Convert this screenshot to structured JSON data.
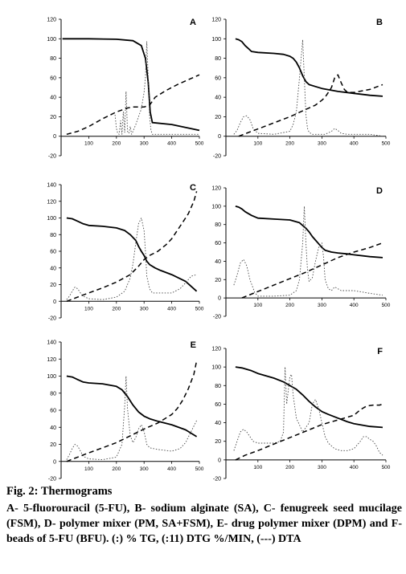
{
  "chart_data": [
    {
      "type": "line",
      "panel_label": "A",
      "x_ticks": [
        "100",
        "200",
        "300",
        "400",
        "500"
      ],
      "y_ticks": [
        "-20",
        "0",
        "20",
        "40",
        "60",
        "80",
        "100",
        "120"
      ],
      "xlim": [
        0,
        500
      ],
      "ylim": [
        -20,
        120
      ],
      "series": [
        {
          "style": "solid",
          "x": [
            5,
            100,
            200,
            260,
            290,
            305,
            315,
            322,
            330,
            400,
            450,
            500
          ],
          "y": [
            100,
            100,
            99.5,
            98,
            93,
            80,
            55,
            25,
            14,
            12,
            9,
            6
          ]
        },
        {
          "style": "dotted",
          "x": [
            195,
            200,
            205,
            210,
            215,
            220,
            225,
            230,
            235,
            240,
            245,
            250,
            255,
            260,
            270,
            280,
            290,
            300,
            305,
            310,
            315,
            320,
            325,
            330,
            340,
            360,
            400,
            450,
            500
          ],
          "y": [
            22,
            8,
            3,
            2,
            16,
            2,
            25,
            4,
            46,
            5,
            3,
            10,
            2,
            5,
            12,
            20,
            28,
            45,
            60,
            97,
            60,
            20,
            6,
            2,
            2,
            2,
            2,
            2,
            2
          ]
        },
        {
          "style": "dashed",
          "x": [
            20,
            60,
            100,
            150,
            200,
            240,
            260,
            280,
            300,
            320,
            340,
            380,
            420,
            460,
            500
          ],
          "y": [
            2,
            5,
            10,
            18,
            25,
            29,
            30,
            30,
            30,
            32,
            40,
            47,
            53,
            58,
            63
          ]
        }
      ]
    },
    {
      "type": "line",
      "panel_label": "B",
      "x_ticks": [
        "100",
        "200",
        "300",
        "400",
        "500"
      ],
      "y_ticks": [
        "-20",
        "0",
        "20",
        "40",
        "60",
        "80",
        "100",
        "120"
      ],
      "xlim": [
        0,
        500
      ],
      "ylim": [
        -20,
        120
      ],
      "series": [
        {
          "style": "solid",
          "x": [
            30,
            40,
            50,
            60,
            70,
            80,
            100,
            150,
            180,
            200,
            210,
            220,
            230,
            240,
            250,
            260,
            280,
            300,
            350,
            400,
            450,
            490
          ],
          "y": [
            100,
            99,
            97,
            93,
            90,
            87,
            86,
            85,
            84,
            82,
            80,
            76,
            70,
            62,
            56,
            53,
            51,
            49,
            46,
            44,
            42,
            41
          ]
        },
        {
          "style": "dotted",
          "x": [
            25,
            35,
            45,
            55,
            65,
            75,
            85,
            100,
            150,
            200,
            210,
            220,
            230,
            240,
            245,
            250,
            255,
            260,
            270,
            290,
            310,
            330,
            340,
            350,
            360,
            380,
            400,
            450,
            490
          ],
          "y": [
            2,
            6,
            14,
            20,
            21,
            17,
            8,
            3,
            2,
            5,
            12,
            25,
            60,
            99,
            60,
            22,
            8,
            4,
            2,
            2,
            2,
            5,
            8,
            6,
            3,
            2,
            2,
            2,
            0
          ]
        },
        {
          "style": "dashed",
          "x": [
            40,
            80,
            120,
            160,
            200,
            240,
            280,
            300,
            310,
            320,
            330,
            340,
            350,
            360,
            370,
            380,
            400,
            450,
            490
          ],
          "y": [
            0,
            5,
            10,
            15,
            20,
            26,
            32,
            37,
            40,
            45,
            50,
            60,
            63,
            55,
            48,
            45,
            45,
            48,
            53
          ]
        }
      ]
    },
    {
      "type": "line",
      "panel_label": "C",
      "x_ticks": [
        "100",
        "200",
        "300",
        "400",
        "500"
      ],
      "y_ticks": [
        "-20",
        "0",
        "20",
        "40",
        "60",
        "80",
        "100",
        "120",
        "140"
      ],
      "xlim": [
        0,
        500
      ],
      "ylim": [
        -20,
        140
      ],
      "series": [
        {
          "style": "solid",
          "x": [
            20,
            40,
            60,
            80,
            100,
            150,
            200,
            230,
            250,
            270,
            280,
            290,
            300,
            310,
            320,
            340,
            360,
            400,
            450,
            490
          ],
          "y": [
            100,
            99,
            96,
            93,
            91,
            90,
            88,
            85,
            80,
            73,
            66,
            60,
            55,
            48,
            44,
            40,
            37,
            32,
            24,
            12
          ]
        },
        {
          "style": "dotted",
          "x": [
            20,
            30,
            40,
            50,
            60,
            70,
            80,
            100,
            150,
            200,
            230,
            250,
            260,
            270,
            280,
            290,
            300,
            305,
            310,
            320,
            330,
            340,
            360,
            400,
            430,
            450,
            470,
            490
          ],
          "y": [
            2,
            6,
            12,
            17,
            15,
            10,
            6,
            3,
            2,
            5,
            12,
            28,
            45,
            70,
            93,
            100,
            85,
            60,
            30,
            15,
            10,
            10,
            10,
            10,
            15,
            22,
            30,
            32
          ]
        },
        {
          "style": "dashed",
          "x": [
            20,
            60,
            100,
            150,
            200,
            250,
            280,
            300,
            320,
            350,
            380,
            400,
            420,
            440,
            460,
            480,
            490
          ],
          "y": [
            0,
            5,
            10,
            16,
            23,
            32,
            42,
            50,
            55,
            60,
            68,
            75,
            85,
            95,
            105,
            120,
            132
          ]
        }
      ]
    },
    {
      "type": "line",
      "panel_label": "D",
      "x_ticks": [
        "100",
        "200",
        "300",
        "400",
        "500"
      ],
      "y_ticks": [
        "-20",
        "0",
        "20",
        "40",
        "60",
        "80",
        "100",
        "120"
      ],
      "xlim": [
        0,
        500
      ],
      "ylim": [
        -20,
        120
      ],
      "series": [
        {
          "style": "solid",
          "x": [
            30,
            40,
            50,
            60,
            80,
            100,
            150,
            200,
            230,
            250,
            260,
            270,
            280,
            290,
            300,
            310,
            330,
            350,
            380,
            400,
            450,
            490
          ],
          "y": [
            100,
            99,
            97,
            94,
            90,
            87,
            86,
            85,
            82,
            76,
            72,
            67,
            63,
            59,
            55,
            52,
            50,
            49,
            48,
            47,
            45,
            44
          ]
        },
        {
          "style": "dotted",
          "x": [
            25,
            35,
            45,
            55,
            65,
            75,
            90,
            100,
            150,
            200,
            220,
            230,
            240,
            245,
            250,
            255,
            260,
            270,
            280,
            290,
            300,
            305,
            310,
            320,
            330,
            340,
            360,
            400,
            450,
            490
          ],
          "y": [
            14,
            25,
            38,
            42,
            35,
            20,
            6,
            2,
            2,
            3,
            8,
            20,
            60,
            100,
            60,
            30,
            18,
            22,
            40,
            55,
            60,
            45,
            20,
            10,
            8,
            12,
            8,
            8,
            5,
            3
          ]
        },
        {
          "style": "dashed",
          "x": [
            50,
            100,
            150,
            200,
            250,
            300,
            350,
            400,
            450,
            490
          ],
          "y": [
            0,
            7,
            14,
            21,
            28,
            36,
            44,
            50,
            55,
            60
          ]
        }
      ]
    },
    {
      "type": "line",
      "panel_label": "E",
      "x_ticks": [
        "100",
        "200",
        "300",
        "400",
        "500"
      ],
      "y_ticks": [
        "-20",
        "0",
        "20",
        "40",
        "60",
        "80",
        "100",
        "120",
        "140"
      ],
      "xlim": [
        0,
        500
      ],
      "ylim": [
        -20,
        140
      ],
      "series": [
        {
          "style": "solid",
          "x": [
            20,
            40,
            60,
            80,
            100,
            150,
            200,
            220,
            240,
            260,
            280,
            300,
            320,
            350,
            400,
            450,
            490
          ],
          "y": [
            100,
            99,
            96,
            93,
            92,
            91,
            88,
            84,
            76,
            66,
            58,
            53,
            50,
            47,
            43,
            37,
            29
          ]
        },
        {
          "style": "dotted",
          "x": [
            20,
            30,
            40,
            50,
            60,
            70,
            80,
            100,
            150,
            200,
            220,
            230,
            235,
            240,
            250,
            260,
            270,
            280,
            290,
            300,
            310,
            320,
            350,
            400,
            430,
            450,
            470,
            490
          ],
          "y": [
            2,
            8,
            15,
            20,
            18,
            12,
            6,
            3,
            2,
            5,
            20,
            65,
            100,
            62,
            30,
            22,
            28,
            38,
            43,
            35,
            20,
            16,
            14,
            12,
            15,
            22,
            35,
            48
          ]
        },
        {
          "style": "dashed",
          "x": [
            20,
            60,
            100,
            150,
            200,
            250,
            300,
            350,
            400,
            420,
            440,
            460,
            480,
            490
          ],
          "y": [
            0,
            5,
            10,
            16,
            22,
            30,
            38,
            45,
            55,
            62,
            72,
            85,
            102,
            118
          ]
        }
      ]
    },
    {
      "type": "line",
      "panel_label": "F",
      "x_ticks": [
        "100",
        "200",
        "300",
        "400",
        "500"
      ],
      "y_ticks": [
        "-20",
        "0",
        "20",
        "40",
        "60",
        "80",
        "100",
        "120"
      ],
      "xlim": [
        0,
        500
      ],
      "ylim": [
        -20,
        120
      ],
      "series": [
        {
          "style": "solid",
          "x": [
            30,
            50,
            80,
            100,
            150,
            180,
            200,
            220,
            240,
            260,
            280,
            300,
            320,
            350,
            380,
            400,
            450,
            490
          ],
          "y": [
            100,
            99,
            96,
            93,
            88,
            84,
            80,
            76,
            70,
            63,
            57,
            52,
            49,
            45,
            41,
            39,
            36,
            35
          ]
        },
        {
          "style": "dotted",
          "x": [
            25,
            35,
            45,
            55,
            65,
            75,
            85,
            100,
            150,
            170,
            180,
            185,
            190,
            195,
            200,
            205,
            210,
            220,
            240,
            260,
            270,
            280,
            290,
            300,
            310,
            320,
            340,
            360,
            380,
            400,
            420,
            430,
            440,
            450,
            460,
            470,
            480,
            490
          ],
          "y": [
            10,
            20,
            30,
            33,
            30,
            25,
            20,
            18,
            18,
            20,
            30,
            100,
            60,
            75,
            90,
            92,
            70,
            45,
            30,
            40,
            60,
            65,
            55,
            40,
            25,
            18,
            12,
            10,
            10,
            12,
            20,
            25,
            25,
            22,
            20,
            15,
            8,
            5
          ]
        },
        {
          "style": "dashed",
          "x": [
            30,
            60,
            100,
            150,
            200,
            250,
            300,
            350,
            400,
            420,
            440,
            460,
            480,
            490
          ],
          "y": [
            0,
            5,
            10,
            17,
            24,
            31,
            38,
            43,
            48,
            54,
            58,
            59,
            59,
            60
          ]
        }
      ]
    }
  ],
  "caption": {
    "title": "Fig. 2: Thermograms",
    "text": "A- 5-fluorouracil (5-FU), B- sodium alginate (SA), C- fenugreek seed mucilage (FSM), D- polymer mixer (PM, SA+FSM), E- drug polymer mixer (DPM) and F- beads of 5-FU (BFU). (:) % TG, (:11) DTG %/MIN, (---) DTA"
  }
}
